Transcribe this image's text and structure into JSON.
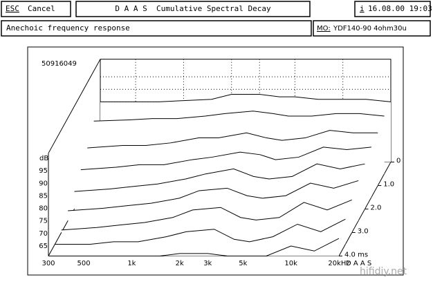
{
  "header": {
    "esc": "ESC",
    "cancel": "Cancel",
    "title": "D A A S  Cumulative Spectral Decay",
    "info": "i",
    "datetime": "16.08.00 19:03",
    "subtitle": "Anechoic frequency response",
    "model_key": "MO:",
    "model": "YDF140-90 4ohm30u"
  },
  "chart_data": {
    "type": "waterfall",
    "id": "50916049",
    "y_label": "dB",
    "brand": "D A A S",
    "watermark": "hifidiy.net",
    "xlim": [
      300,
      20000
    ],
    "ylim": [
      61,
      102
    ],
    "zlim": [
      0,
      4
    ],
    "xticks": [
      300,
      500,
      {
        "value": 1000,
        "label": "1k"
      },
      {
        "value": 2000,
        "label": "2k"
      },
      {
        "value": 3000,
        "label": "3k"
      },
      {
        "value": 5000,
        "label": "5k"
      },
      {
        "value": 10000,
        "label": "10k"
      },
      {
        "value": 20000,
        "label": "20kHz"
      }
    ],
    "yticks": [
      95,
      90,
      85,
      80,
      75,
      70,
      65
    ],
    "zticks": [
      0,
      {
        "value": 1,
        "label": "1.0"
      },
      {
        "value": 2,
        "label": "2.0"
      },
      {
        "value": 3,
        "label": "3.0"
      },
      {
        "value": 4,
        "label": "4.0 ms"
      }
    ],
    "x": [
      300,
      500,
      700,
      1000,
      1500,
      2000,
      3000,
      4000,
      5000,
      7000,
      10000,
      14000,
      20000
    ],
    "series": [
      {
        "t": 0,
        "values": [
          85,
          85,
          85,
          85.5,
          86,
          88,
          88,
          87,
          87,
          86,
          86,
          86,
          85
        ]
      },
      {
        "t": 0.5,
        "values": [
          82,
          82.5,
          83,
          83,
          84,
          85,
          86,
          85,
          84,
          84,
          85,
          85,
          84
        ]
      },
      {
        "t": 1,
        "values": [
          76,
          77,
          77,
          78,
          80,
          80,
          82,
          80,
          79,
          80,
          83,
          82,
          82
        ]
      },
      {
        "t": 1.5,
        "values": [
          72,
          73,
          74,
          74,
          76,
          77,
          79,
          78,
          76,
          77,
          81,
          80,
          81
        ]
      },
      {
        "t": 2,
        "values": [
          68,
          69,
          70,
          71,
          73,
          75,
          77,
          74,
          73,
          74,
          79,
          77,
          79
        ]
      },
      {
        "t": 2.5,
        "values": [
          65,
          66,
          67,
          68,
          70,
          73,
          74,
          71,
          70,
          71,
          76,
          74,
          77
        ]
      },
      {
        "t": 3,
        "values": [
          62,
          63,
          64,
          65,
          67,
          70,
          71,
          67,
          66,
          67,
          73,
          70,
          74
        ]
      },
      {
        "t": 3.5,
        "values": [
          61,
          61,
          62,
          62,
          64,
          66,
          67,
          63,
          62,
          64,
          69,
          66,
          71
        ]
      },
      {
        "t": 4,
        "values": [
          61,
          61,
          61,
          61,
          61,
          62,
          62,
          61,
          61,
          61,
          65,
          63,
          68
        ]
      }
    ]
  }
}
